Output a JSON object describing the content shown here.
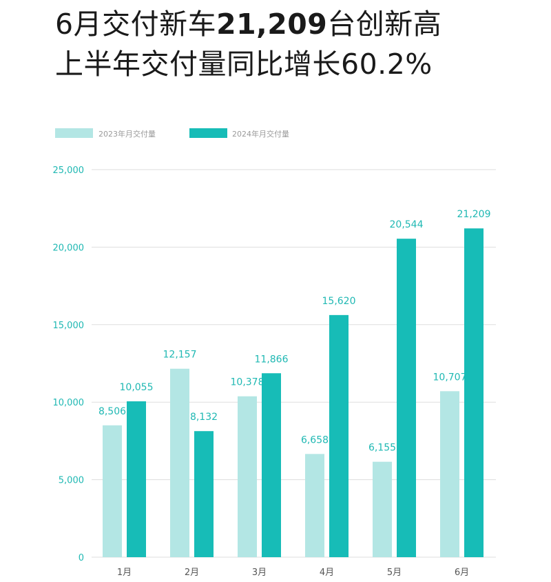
{
  "headline": {
    "line1_prefix": "6月交付新车",
    "line1_number": "21,209",
    "line1_suffix": "台创新高",
    "line2": "上半年交付量同比增长60.2%"
  },
  "colors": {
    "series_2023": "#b3e6e4",
    "series_2024": "#17bcb7",
    "grid": "#dddddd",
    "axis_text": "#1fb8b3"
  },
  "chart_data": {
    "type": "bar",
    "categories": [
      "1月",
      "2月",
      "3月",
      "4月",
      "5月",
      "6月"
    ],
    "series": [
      {
        "name": "2023年月交付量",
        "values": [
          8506,
          12157,
          10378,
          6658,
          6155,
          10707
        ],
        "labels": [
          "8,506",
          "12,157",
          "10,378",
          "6,658",
          "6,155",
          "10,707"
        ]
      },
      {
        "name": "2024年月交付量",
        "values": [
          10055,
          8132,
          11866,
          15620,
          20544,
          21209
        ],
        "labels": [
          "10,055",
          "8,132",
          "11,866",
          "15,620",
          "20,544",
          "21,209"
        ]
      }
    ],
    "ylim": [
      0,
      25000
    ],
    "yticks": [
      0,
      5000,
      10000,
      15000,
      20000,
      25000
    ],
    "ytick_labels": [
      "0",
      "5,000",
      "10,000",
      "15,000",
      "20,000",
      "25,000"
    ],
    "grid": true,
    "legend_position": "top-left"
  }
}
